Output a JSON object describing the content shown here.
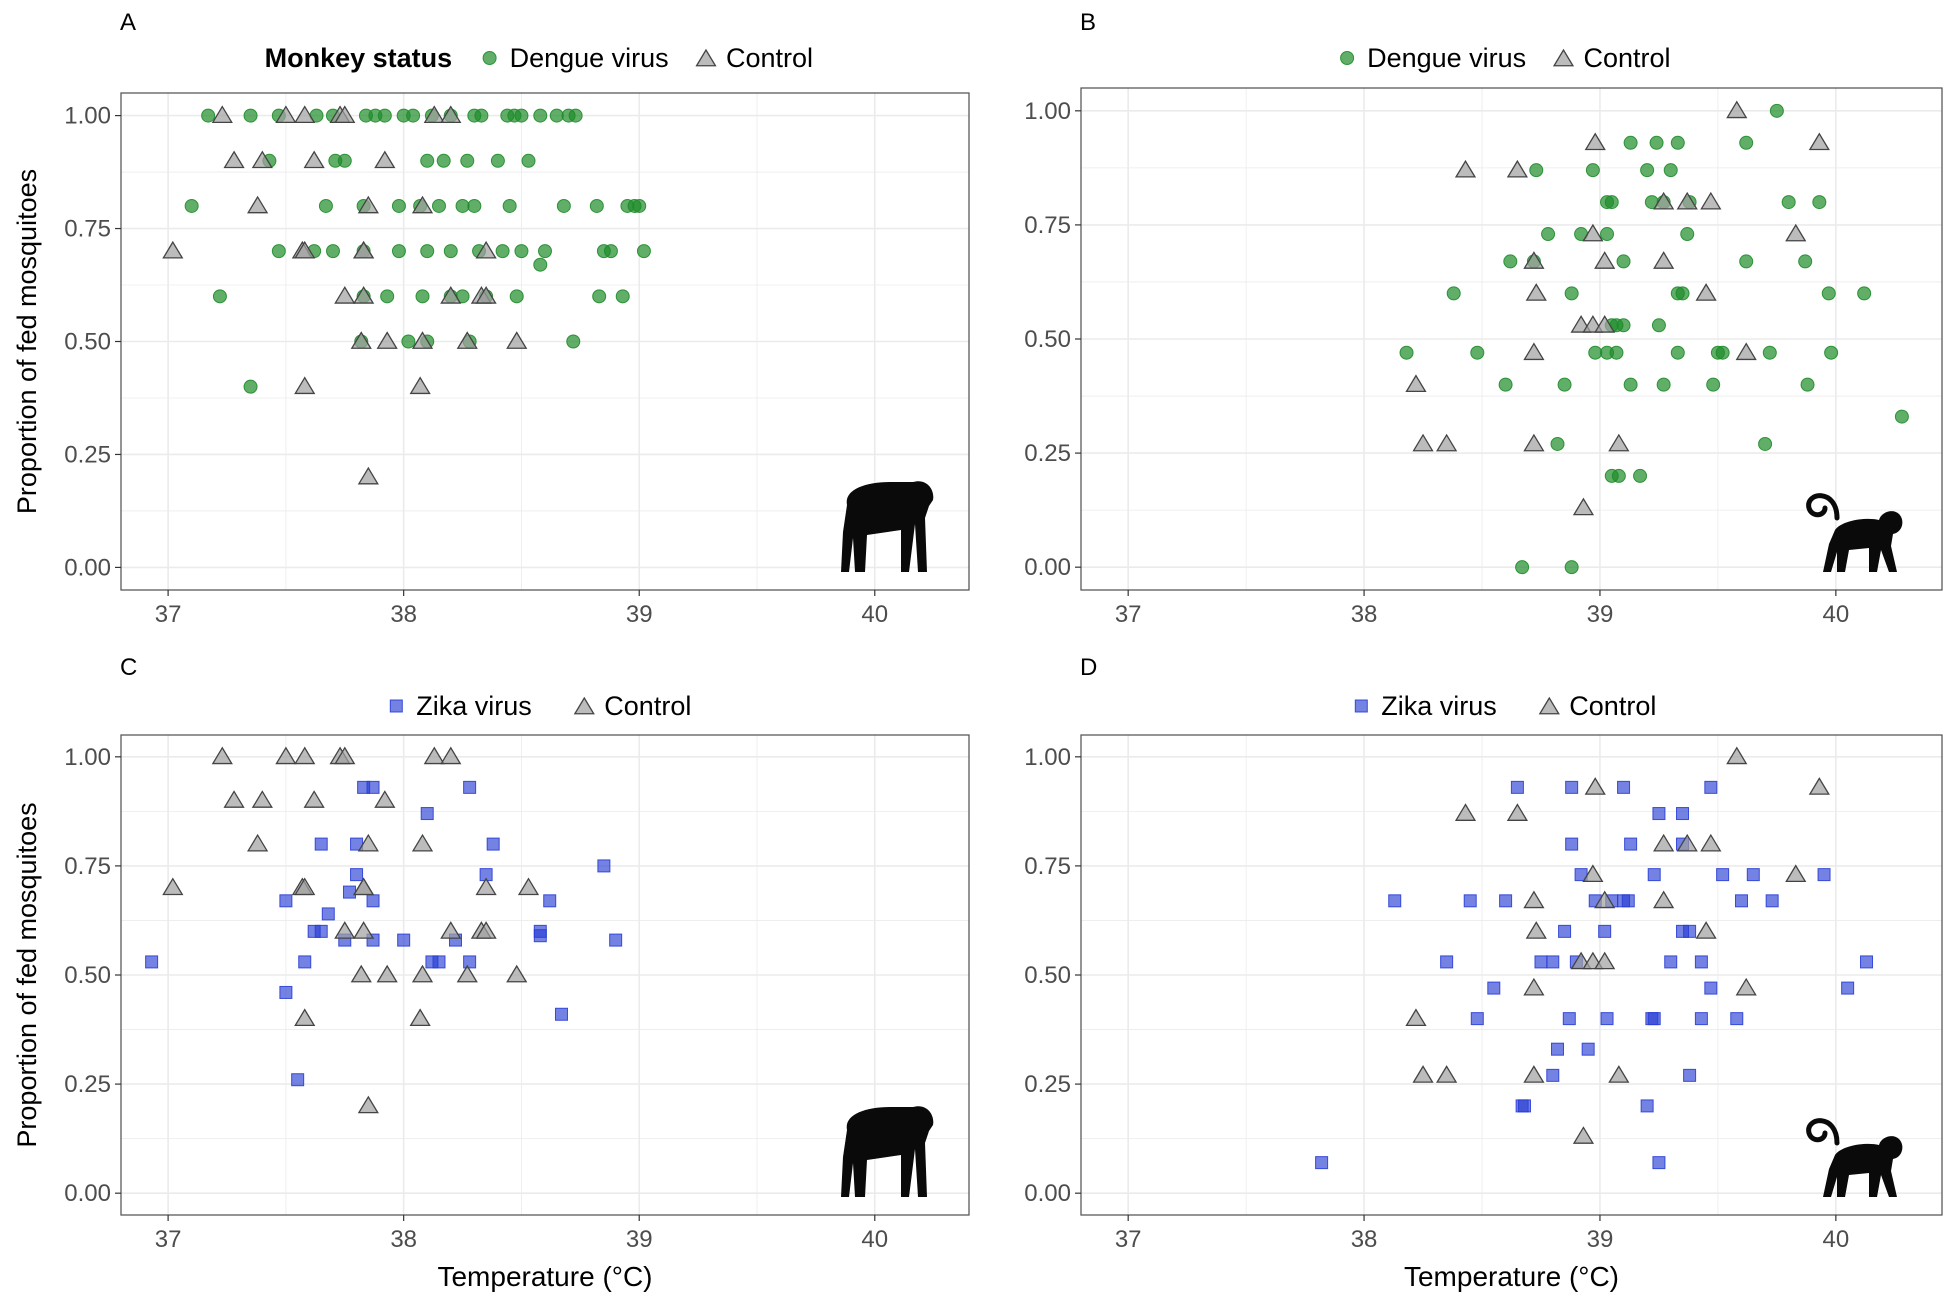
{
  "colors": {
    "dengue": "#1e8c2a",
    "zika": "#2a3fd4",
    "control": "#a0a0a0",
    "control_stroke": "#444444",
    "grid": "#ebebeb",
    "panel_border": "#4d4d4d"
  },
  "legend_title": "Monkey status",
  "x_axis_title": "Temperature",
  "x_axis_unit": "(°C)",
  "y_axis_title": "Proportion of fed mosquitoes",
  "chart_data": [
    {
      "panel": "A",
      "type": "scatter",
      "icon": "macaque-silhouette-icon",
      "legend": [
        "Dengue virus",
        "Control"
      ],
      "show_legend_title": true,
      "xlim": [
        36.8,
        40.4
      ],
      "ylim": [
        -0.05,
        1.05
      ],
      "xticks": [
        "37",
        "38",
        "39",
        "40"
      ],
      "yticks": [
        "0.00",
        "0.25",
        "0.50",
        "0.75",
        "1.00"
      ],
      "series": [
        {
          "name": "Dengue virus",
          "marker": "circle",
          "x": [
            37.17,
            37.35,
            37.47,
            37.63,
            37.7,
            37.84,
            37.88,
            37.92,
            38.0,
            38.04,
            38.12,
            38.2,
            38.3,
            38.33,
            38.44,
            38.47,
            38.5,
            38.58,
            38.65,
            38.7,
            38.73,
            37.1,
            37.67,
            37.83,
            37.98,
            38.07,
            38.15,
            38.25,
            38.3,
            38.45,
            38.68,
            38.82,
            38.95,
            38.98,
            39.0,
            37.43,
            37.71,
            37.75,
            38.1,
            38.17,
            38.27,
            38.4,
            38.53,
            37.47,
            37.62,
            37.7,
            37.83,
            37.98,
            38.1,
            38.2,
            38.32,
            38.42,
            38.5,
            38.6,
            38.85,
            38.88,
            39.02,
            38.58,
            37.22,
            37.83,
            37.93,
            38.08,
            38.2,
            38.25,
            38.35,
            38.48,
            38.83,
            38.93,
            37.35,
            37.82,
            38.02,
            38.1,
            38.28,
            38.72
          ],
          "y": [
            1.0,
            1.0,
            1.0,
            1.0,
            1.0,
            1.0,
            1.0,
            1.0,
            1.0,
            1.0,
            1.0,
            1.0,
            1.0,
            1.0,
            1.0,
            1.0,
            1.0,
            1.0,
            1.0,
            1.0,
            1.0,
            0.8,
            0.8,
            0.8,
            0.8,
            0.8,
            0.8,
            0.8,
            0.8,
            0.8,
            0.8,
            0.8,
            0.8,
            0.8,
            0.8,
            0.9,
            0.9,
            0.9,
            0.9,
            0.9,
            0.9,
            0.9,
            0.9,
            0.7,
            0.7,
            0.7,
            0.7,
            0.7,
            0.7,
            0.7,
            0.7,
            0.7,
            0.7,
            0.7,
            0.7,
            0.7,
            0.7,
            0.67,
            0.6,
            0.6,
            0.6,
            0.6,
            0.6,
            0.6,
            0.6,
            0.6,
            0.6,
            0.6,
            0.4,
            0.5,
            0.5,
            0.5,
            0.5,
            0.5
          ]
        },
        {
          "name": "Control",
          "marker": "triangle",
          "x": [
            37.23,
            37.5,
            37.58,
            37.73,
            37.75,
            38.13,
            38.2,
            37.28,
            37.4,
            37.62,
            37.92,
            37.38,
            37.85,
            38.08,
            37.02,
            37.57,
            37.58,
            37.83,
            37.83,
            38.35,
            37.75,
            37.83,
            38.2,
            38.33,
            38.35,
            37.82,
            37.93,
            38.08,
            38.27,
            38.48,
            37.58,
            38.07,
            37.85
          ],
          "y": [
            1.0,
            1.0,
            1.0,
            1.0,
            1.0,
            1.0,
            1.0,
            0.9,
            0.9,
            0.9,
            0.9,
            0.8,
            0.8,
            0.8,
            0.7,
            0.7,
            0.7,
            0.7,
            0.7,
            0.7,
            0.6,
            0.6,
            0.6,
            0.6,
            0.6,
            0.5,
            0.5,
            0.5,
            0.5,
            0.5,
            0.4,
            0.4,
            0.2
          ]
        }
      ]
    },
    {
      "panel": "B",
      "type": "scatter",
      "icon": "tailed-monkey-silhouette-icon",
      "legend": [
        "Dengue virus",
        "Control"
      ],
      "show_legend_title": false,
      "xlim": [
        36.8,
        40.45
      ],
      "ylim": [
        -0.05,
        1.05
      ],
      "xticks": [
        "37",
        "38",
        "39",
        "40"
      ],
      "yticks": [
        "0.00",
        "0.25",
        "0.50",
        "0.75",
        "1.00"
      ],
      "series": [
        {
          "name": "Dengue virus",
          "marker": "circle",
          "x": [
            39.75,
            39.13,
            39.24,
            39.33,
            39.62,
            38.73,
            38.97,
            39.2,
            39.3,
            39.27,
            39.05,
            39.03,
            39.22,
            39.38,
            39.8,
            39.93,
            38.78,
            38.92,
            39.03,
            39.37,
            38.62,
            38.72,
            39.1,
            39.62,
            39.87,
            38.38,
            38.88,
            39.33,
            39.35,
            39.97,
            40.12,
            39.05,
            39.07,
            38.98,
            39.03,
            39.07,
            39.1,
            39.25,
            39.33,
            39.5,
            39.52,
            39.72,
            39.98,
            38.18,
            38.48,
            38.6,
            38.85,
            39.13,
            39.27,
            39.48,
            39.88,
            40.28,
            38.82,
            39.7,
            39.05,
            39.08,
            39.17,
            38.67,
            38.88
          ],
          "y": [
            1.0,
            0.93,
            0.93,
            0.93,
            0.93,
            0.87,
            0.87,
            0.87,
            0.87,
            0.8,
            0.8,
            0.8,
            0.8,
            0.8,
            0.8,
            0.8,
            0.73,
            0.73,
            0.73,
            0.73,
            0.67,
            0.67,
            0.67,
            0.67,
            0.67,
            0.6,
            0.6,
            0.6,
            0.6,
            0.6,
            0.6,
            0.53,
            0.53,
            0.47,
            0.47,
            0.47,
            0.53,
            0.53,
            0.47,
            0.47,
            0.47,
            0.47,
            0.47,
            0.47,
            0.47,
            0.4,
            0.4,
            0.4,
            0.4,
            0.4,
            0.4,
            0.33,
            0.27,
            0.27,
            0.2,
            0.2,
            0.2,
            0.0,
            0.0
          ]
        },
        {
          "name": "Control",
          "marker": "triangle",
          "x": [
            39.58,
            38.98,
            39.93,
            38.43,
            38.65,
            39.27,
            39.37,
            39.47,
            38.97,
            39.83,
            38.72,
            39.02,
            39.27,
            38.73,
            39.45,
            38.92,
            38.97,
            39.02,
            38.72,
            39.62,
            38.22,
            38.25,
            38.35,
            38.72,
            39.08,
            38.93
          ],
          "y": [
            1.0,
            0.93,
            0.93,
            0.87,
            0.87,
            0.8,
            0.8,
            0.8,
            0.73,
            0.73,
            0.67,
            0.67,
            0.67,
            0.6,
            0.6,
            0.53,
            0.53,
            0.53,
            0.47,
            0.47,
            0.4,
            0.27,
            0.27,
            0.27,
            0.27,
            0.13
          ]
        }
      ]
    },
    {
      "panel": "C",
      "type": "scatter",
      "icon": "macaque-silhouette-icon",
      "legend": [
        "Zika virus",
        "Control"
      ],
      "show_legend_title": false,
      "xlim": [
        36.8,
        40.4
      ],
      "ylim": [
        -0.05,
        1.05
      ],
      "xticks": [
        "37",
        "38",
        "39",
        "40"
      ],
      "yticks": [
        "0.00",
        "0.25",
        "0.50",
        "0.75",
        "1.00"
      ],
      "series": [
        {
          "name": "Zika virus",
          "marker": "square",
          "x": [
            37.83,
            37.87,
            38.28,
            38.1,
            37.65,
            37.8,
            38.38,
            37.8,
            38.35,
            38.85,
            37.5,
            38.62,
            37.68,
            37.77,
            37.87,
            37.62,
            37.65,
            37.75,
            37.87,
            38.0,
            38.22,
            38.58,
            38.58,
            38.9,
            36.93,
            37.58,
            38.12,
            38.15,
            38.28,
            37.5,
            38.67,
            37.55
          ],
          "y": [
            0.93,
            0.93,
            0.93,
            0.87,
            0.8,
            0.8,
            0.8,
            0.73,
            0.73,
            0.75,
            0.67,
            0.67,
            0.64,
            0.69,
            0.67,
            0.6,
            0.6,
            0.58,
            0.58,
            0.58,
            0.58,
            0.59,
            0.6,
            0.58,
            0.53,
            0.53,
            0.53,
            0.53,
            0.53,
            0.46,
            0.41,
            0.26
          ]
        },
        {
          "name": "Control",
          "marker": "triangle",
          "x": [
            37.23,
            37.5,
            37.58,
            37.73,
            37.75,
            38.13,
            38.2,
            37.28,
            37.4,
            37.62,
            37.92,
            37.38,
            37.85,
            38.08,
            37.02,
            37.57,
            37.58,
            37.83,
            37.83,
            38.35,
            38.53,
            37.75,
            37.83,
            38.2,
            38.33,
            38.35,
            37.82,
            37.93,
            38.08,
            38.27,
            38.48,
            37.58,
            38.07,
            37.85
          ],
          "y": [
            1.0,
            1.0,
            1.0,
            1.0,
            1.0,
            1.0,
            1.0,
            0.9,
            0.9,
            0.9,
            0.9,
            0.8,
            0.8,
            0.8,
            0.7,
            0.7,
            0.7,
            0.7,
            0.7,
            0.7,
            0.7,
            0.6,
            0.6,
            0.6,
            0.6,
            0.6,
            0.5,
            0.5,
            0.5,
            0.5,
            0.5,
            0.4,
            0.4,
            0.2
          ]
        }
      ]
    },
    {
      "panel": "D",
      "type": "scatter",
      "icon": "tailed-monkey-silhouette-icon",
      "legend": [
        "Zika virus",
        "Control"
      ],
      "show_legend_title": false,
      "xlim": [
        36.8,
        40.45
      ],
      "ylim": [
        -0.05,
        1.05
      ],
      "xticks": [
        "37",
        "38",
        "39",
        "40"
      ],
      "yticks": [
        "0.00",
        "0.25",
        "0.50",
        "0.75",
        "1.00"
      ],
      "series": [
        {
          "name": "Zika virus",
          "marker": "square",
          "x": [
            38.65,
            38.88,
            39.1,
            39.47,
            39.25,
            39.35,
            38.88,
            39.13,
            39.35,
            38.92,
            39.23,
            39.52,
            39.65,
            39.95,
            38.13,
            38.45,
            38.6,
            38.98,
            39.05,
            39.1,
            39.12,
            39.6,
            39.73,
            38.75,
            38.85,
            39.02,
            39.35,
            39.38,
            38.35,
            38.8,
            38.9,
            39.3,
            39.43,
            38.55,
            39.47,
            38.48,
            38.87,
            39.03,
            39.22,
            39.23,
            39.43,
            39.58,
            38.82,
            38.95,
            38.8,
            39.38,
            38.67,
            38.68,
            39.2,
            37.82,
            39.25,
            40.05,
            40.13
          ],
          "y": [
            0.93,
            0.93,
            0.93,
            0.93,
            0.87,
            0.87,
            0.8,
            0.8,
            0.8,
            0.73,
            0.73,
            0.73,
            0.73,
            0.73,
            0.67,
            0.67,
            0.67,
            0.67,
            0.67,
            0.67,
            0.67,
            0.67,
            0.67,
            0.53,
            0.6,
            0.6,
            0.6,
            0.6,
            0.53,
            0.53,
            0.53,
            0.53,
            0.53,
            0.47,
            0.47,
            0.4,
            0.4,
            0.4,
            0.4,
            0.4,
            0.4,
            0.4,
            0.33,
            0.33,
            0.27,
            0.27,
            0.2,
            0.2,
            0.2,
            0.07,
            0.07,
            0.47,
            0.53
          ]
        },
        {
          "name": "Control",
          "marker": "triangle",
          "x": [
            39.58,
            38.98,
            39.93,
            38.43,
            38.65,
            39.27,
            39.37,
            39.47,
            38.97,
            39.83,
            38.72,
            39.02,
            39.27,
            38.73,
            39.45,
            38.92,
            38.97,
            39.02,
            38.72,
            39.62,
            38.22,
            38.25,
            38.35,
            38.72,
            39.08,
            38.93
          ],
          "y": [
            1.0,
            0.93,
            0.93,
            0.87,
            0.87,
            0.8,
            0.8,
            0.8,
            0.73,
            0.73,
            0.67,
            0.67,
            0.67,
            0.6,
            0.6,
            0.53,
            0.53,
            0.53,
            0.47,
            0.47,
            0.4,
            0.27,
            0.27,
            0.27,
            0.27,
            0.13
          ]
        }
      ]
    }
  ]
}
